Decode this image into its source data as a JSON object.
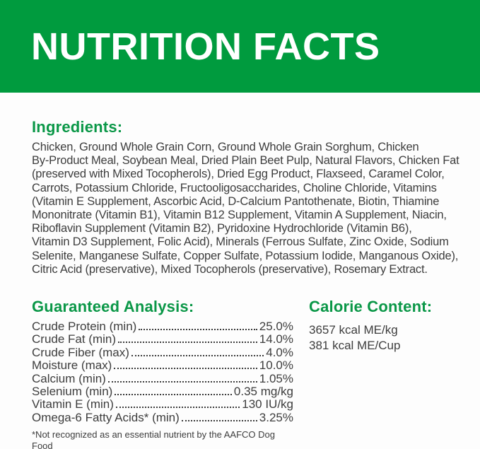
{
  "colors": {
    "banner_green": "#009b3e",
    "heading_green": "#0a9747",
    "body_text": "#3d3d3d",
    "banner_text": "#ffffff"
  },
  "header": {
    "title": "NUTRITION FACTS"
  },
  "ingredients": {
    "heading": "Ingredients:",
    "text": "Chicken, Ground Whole Grain Corn, Ground Whole Grain Sorghum, Chicken\nBy-Product Meal, Soybean Meal, Dried Plain Beet Pulp, Natural Flavors, Chicken Fat\n(preserved with Mixed Tocopherols), Dried Egg Product, Flaxseed, Caramel Color,\nCarrots, Potassium Chloride, Fructooligosaccharides, Choline Chloride, Vitamins\n(Vitamin E Supplement, Ascorbic Acid, D-Calcium Pantothenate, Biotin, Thiamine\nMononitrate (Vitamin B1), Vitamin B12 Supplement, Vitamin A Supplement, Niacin,\nRiboflavin Supplement (Vitamin B2), Pyridoxine Hydrochloride (Vitamin B6),\nVitamin D3 Supplement, Folic Acid), Minerals (Ferrous Sulfate, Zinc Oxide, Sodium\nSelenite, Manganese Sulfate, Copper Sulfate, Potassium Iodide, Manganous Oxide),\nCitric Acid (preservative), Mixed Tocopherols (preservative), Rosemary Extract."
  },
  "guaranteed_analysis": {
    "heading": "Guaranteed Analysis:",
    "rows": [
      {
        "label": "Crude Protein (min)",
        "value": "25.0%"
      },
      {
        "label": "Crude Fat (min)",
        "value": "14.0%"
      },
      {
        "label": "Crude Fiber (max)",
        "value": "4.0%"
      },
      {
        "label": "Moisture (max)",
        "value": "10.0%"
      },
      {
        "label": "Calcium (min)",
        "value": "1.05%"
      },
      {
        "label": "Selenium (min)",
        "value": "0.35 mg/kg"
      },
      {
        "label": "Vitamin E (min)",
        "value": "130 IU/kg"
      },
      {
        "label": "Omega-6 Fatty Acids* (min)",
        "value": "3.25%"
      }
    ],
    "footnote": "*Not recognized as an essential nutrient by the AAFCO Dog Food\nNutrient Profiles."
  },
  "calorie_content": {
    "heading": "Calorie Content:",
    "lines": [
      "3657 kcal ME/kg",
      "381 kcal ME/Cup"
    ]
  }
}
